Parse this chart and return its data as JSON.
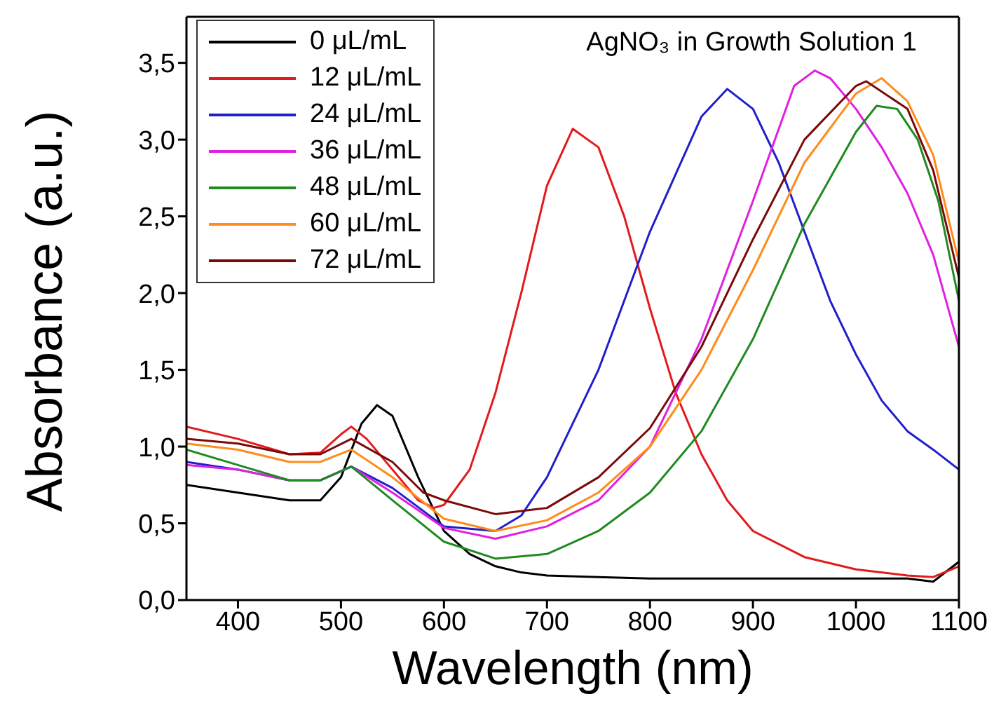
{
  "chart_data": {
    "type": "line",
    "xlabel": "Wavelength (nm)",
    "ylabel": "Absorbance (a.u.)",
    "annotations": [
      "AgNO₃ in Growth Solution 1"
    ],
    "xlim": [
      350,
      1100
    ],
    "xticks": [
      400,
      500,
      600,
      700,
      800,
      900,
      1000,
      1100
    ],
    "ylim": [
      0,
      3.8
    ],
    "yticks": [
      {
        "value": 0,
        "label": "0,0"
      },
      {
        "value": 0.5,
        "label": "0,5"
      },
      {
        "value": 1,
        "label": "1,0"
      },
      {
        "value": 1.5,
        "label": "1,5"
      },
      {
        "value": 2,
        "label": "2,0"
      },
      {
        "value": 2.5,
        "label": "2,5"
      },
      {
        "value": 3,
        "label": "3,0"
      },
      {
        "value": 3.5,
        "label": "3,5"
      }
    ],
    "legend": "top left",
    "grid": false,
    "marker": "none",
    "line_style": "solid",
    "series": [
      {
        "name": "0 μL/mL",
        "color": "#000000",
        "x": [
          350,
          400,
          450,
          480,
          500,
          520,
          535,
          550,
          575,
          600,
          625,
          650,
          675,
          700,
          750,
          800,
          900,
          1000,
          1050,
          1075,
          1100
        ],
        "values": [
          0.75,
          0.7,
          0.65,
          0.65,
          0.8,
          1.15,
          1.27,
          1.2,
          0.8,
          0.45,
          0.3,
          0.22,
          0.18,
          0.16,
          0.15,
          0.14,
          0.14,
          0.14,
          0.14,
          0.12,
          0.25
        ]
      },
      {
        "name": "12 μL/mL",
        "color": "#e31a1c",
        "x": [
          350,
          400,
          450,
          480,
          500,
          510,
          525,
          550,
          575,
          590,
          600,
          625,
          650,
          675,
          700,
          725,
          750,
          775,
          800,
          825,
          850,
          875,
          900,
          950,
          1000,
          1050,
          1075,
          1100
        ],
        "values": [
          1.13,
          1.05,
          0.95,
          0.96,
          1.08,
          1.13,
          1.05,
          0.85,
          0.65,
          0.6,
          0.62,
          0.85,
          1.35,
          2.0,
          2.7,
          3.07,
          2.95,
          2.5,
          1.9,
          1.35,
          0.95,
          0.65,
          0.45,
          0.28,
          0.2,
          0.16,
          0.15,
          0.22
        ]
      },
      {
        "name": "24 μL/mL",
        "color": "#1f1fcc",
        "x": [
          350,
          400,
          450,
          480,
          510,
          550,
          600,
          650,
          675,
          700,
          750,
          800,
          850,
          875,
          900,
          925,
          950,
          975,
          1000,
          1025,
          1050,
          1075,
          1100
        ],
        "values": [
          0.9,
          0.85,
          0.78,
          0.78,
          0.87,
          0.73,
          0.48,
          0.45,
          0.55,
          0.8,
          1.5,
          2.4,
          3.15,
          3.33,
          3.2,
          2.85,
          2.4,
          1.95,
          1.6,
          1.3,
          1.1,
          0.98,
          0.85
        ]
      },
      {
        "name": "36 μL/mL",
        "color": "#e020e0",
        "x": [
          350,
          400,
          450,
          480,
          510,
          550,
          600,
          650,
          700,
          750,
          800,
          850,
          900,
          940,
          960,
          975,
          1000,
          1025,
          1050,
          1075,
          1100
        ],
        "values": [
          0.88,
          0.85,
          0.78,
          0.78,
          0.87,
          0.7,
          0.47,
          0.4,
          0.48,
          0.65,
          1.0,
          1.7,
          2.6,
          3.35,
          3.45,
          3.4,
          3.2,
          2.95,
          2.65,
          2.25,
          1.65
        ]
      },
      {
        "name": "48 μL/mL",
        "color": "#1f8a1f",
        "x": [
          350,
          400,
          450,
          480,
          510,
          550,
          600,
          650,
          700,
          750,
          800,
          850,
          900,
          950,
          1000,
          1020,
          1040,
          1060,
          1080,
          1100
        ],
        "values": [
          0.98,
          0.88,
          0.78,
          0.78,
          0.87,
          0.65,
          0.38,
          0.27,
          0.3,
          0.45,
          0.7,
          1.1,
          1.7,
          2.45,
          3.05,
          3.22,
          3.2,
          3.0,
          2.6,
          1.95
        ]
      },
      {
        "name": "60 μL/mL",
        "color": "#ff8c1a",
        "x": [
          350,
          400,
          450,
          480,
          510,
          550,
          600,
          650,
          700,
          750,
          800,
          850,
          900,
          950,
          1000,
          1025,
          1050,
          1075,
          1100
        ],
        "values": [
          1.02,
          0.98,
          0.9,
          0.9,
          0.98,
          0.8,
          0.53,
          0.45,
          0.52,
          0.7,
          1.0,
          1.5,
          2.15,
          2.85,
          3.3,
          3.4,
          3.25,
          2.9,
          2.2
        ]
      },
      {
        "name": "72 μL/mL",
        "color": "#7a0a0a",
        "x": [
          350,
          400,
          450,
          480,
          510,
          550,
          580,
          600,
          650,
          700,
          750,
          800,
          850,
          900,
          950,
          1000,
          1010,
          1050,
          1075,
          1100
        ],
        "values": [
          1.05,
          1.02,
          0.95,
          0.95,
          1.05,
          0.9,
          0.7,
          0.65,
          0.56,
          0.6,
          0.8,
          1.12,
          1.65,
          2.35,
          3.0,
          3.35,
          3.38,
          3.2,
          2.8,
          2.1
        ]
      }
    ]
  }
}
